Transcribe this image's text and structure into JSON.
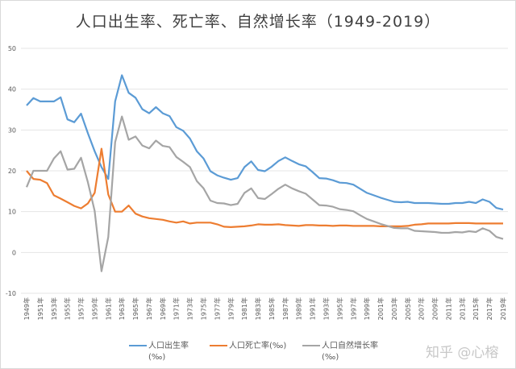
{
  "chart_data": {
    "type": "line",
    "title": "人口出生率、死亡率、自然增长率（1949-2019）",
    "xlabel": "",
    "ylabel": "",
    "ylim": [
      -10,
      50
    ],
    "yticks": [
      "50",
      "40",
      "30",
      "20",
      "10",
      "0",
      "-10"
    ],
    "grid": true,
    "legend_position": "bottom",
    "x": [
      1949,
      1950,
      1951,
      1952,
      1953,
      1954,
      1955,
      1956,
      1957,
      1958,
      1959,
      1960,
      1961,
      1962,
      1963,
      1964,
      1965,
      1966,
      1967,
      1968,
      1969,
      1970,
      1971,
      1972,
      1973,
      1974,
      1975,
      1976,
      1977,
      1978,
      1979,
      1980,
      1981,
      1982,
      1983,
      1984,
      1985,
      1986,
      1987,
      1988,
      1989,
      1990,
      1991,
      1992,
      1993,
      1994,
      1995,
      1996,
      1997,
      1998,
      1999,
      2000,
      2001,
      2002,
      2003,
      2004,
      2005,
      2006,
      2007,
      2008,
      2009,
      2010,
      2011,
      2012,
      2013,
      2014,
      2015,
      2016,
      2017,
      2018,
      2019
    ],
    "xtick_labels": [
      "1949年",
      "1951年",
      "1953年",
      "1955年",
      "1957年",
      "1959年",
      "1961年",
      "1963年",
      "1965年",
      "1967年",
      "1969年",
      "1971年",
      "1973年",
      "1975年",
      "1977年",
      "1979年",
      "1981年",
      "1983年",
      "1985年",
      "1987年",
      "1989年",
      "1991年",
      "1993年",
      "1995年",
      "1997年",
      "1999年",
      "2001年",
      "2003年",
      "2005年",
      "2007年",
      "2009年",
      "2011年",
      "2013年",
      "2015年",
      "2017年",
      "2019年"
    ],
    "series": [
      {
        "name": "人口出生率",
        "name_unit": "(‰)",
        "color": "#5b9bd5",
        "values": [
          36,
          37.8,
          37,
          37,
          37,
          38,
          32.6,
          31.9,
          34,
          29.2,
          24.8,
          20.9,
          18,
          37,
          43.4,
          39.1,
          37.9,
          35.1,
          34.1,
          35.6,
          34.1,
          33.4,
          30.7,
          29.8,
          27.9,
          24.8,
          23,
          19.9,
          18.9,
          18.3,
          17.8,
          18.2,
          20.9,
          22.3,
          20.2,
          19.9,
          21,
          22.4,
          23.3,
          22.4,
          21.6,
          21.1,
          19.7,
          18.2,
          18.1,
          17.7,
          17.1,
          17,
          16.6,
          15.6,
          14.6,
          14,
          13.4,
          12.9,
          12.4,
          12.3,
          12.4,
          12.1,
          12.1,
          12.1,
          12,
          11.9,
          11.9,
          12.1,
          12.1,
          12.4,
          12.1,
          13,
          12.4,
          10.9,
          10.5
        ]
      },
      {
        "name": "人口死亡率(‰)",
        "name_unit": "",
        "color": "#ed7d31",
        "values": [
          20,
          18,
          17.8,
          17,
          14,
          13.2,
          12.3,
          11.4,
          10.8,
          12,
          14.6,
          25.4,
          14.2,
          10,
          10,
          11.5,
          9.5,
          8.8,
          8.4,
          8.2,
          8,
          7.6,
          7.3,
          7.6,
          7.1,
          7.3,
          7.3,
          7.3,
          6.9,
          6.3,
          6.2,
          6.3,
          6.4,
          6.6,
          6.9,
          6.8,
          6.8,
          6.9,
          6.7,
          6.6,
          6.5,
          6.7,
          6.7,
          6.6,
          6.6,
          6.5,
          6.6,
          6.6,
          6.5,
          6.5,
          6.5,
          6.5,
          6.4,
          6.4,
          6.4,
          6.4,
          6.5,
          6.8,
          6.9,
          7.1,
          7.1,
          7.1,
          7.1,
          7.2,
          7.2,
          7.2,
          7.1,
          7.1,
          7.1,
          7.1,
          7.1
        ]
      },
      {
        "name": "人口自然增长率",
        "name_unit": "(‰)",
        "color": "#a5a5a5",
        "values": [
          16,
          20,
          20,
          20,
          23,
          24.8,
          20.3,
          20.5,
          23.2,
          17.2,
          10.2,
          -4.6,
          3.8,
          27,
          33.3,
          27.6,
          28.4,
          26.2,
          25.5,
          27.4,
          26.1,
          25.8,
          23.4,
          22.2,
          20.9,
          17.5,
          15.7,
          12.7,
          12.1,
          12,
          11.6,
          11.9,
          14.6,
          15.7,
          13.3,
          13.1,
          14.3,
          15.6,
          16.6,
          15.7,
          15,
          14.4,
          13,
          11.6,
          11.5,
          11.2,
          10.6,
          10.4,
          10.1,
          9.1,
          8.2,
          7.6,
          7,
          6.5,
          6,
          5.9,
          5.9,
          5.3,
          5.2,
          5.1,
          5,
          4.8,
          4.8,
          5,
          4.9,
          5.2,
          5,
          5.9,
          5.3,
          3.8,
          3.3
        ]
      }
    ]
  },
  "watermark": "知乎 @心榕"
}
